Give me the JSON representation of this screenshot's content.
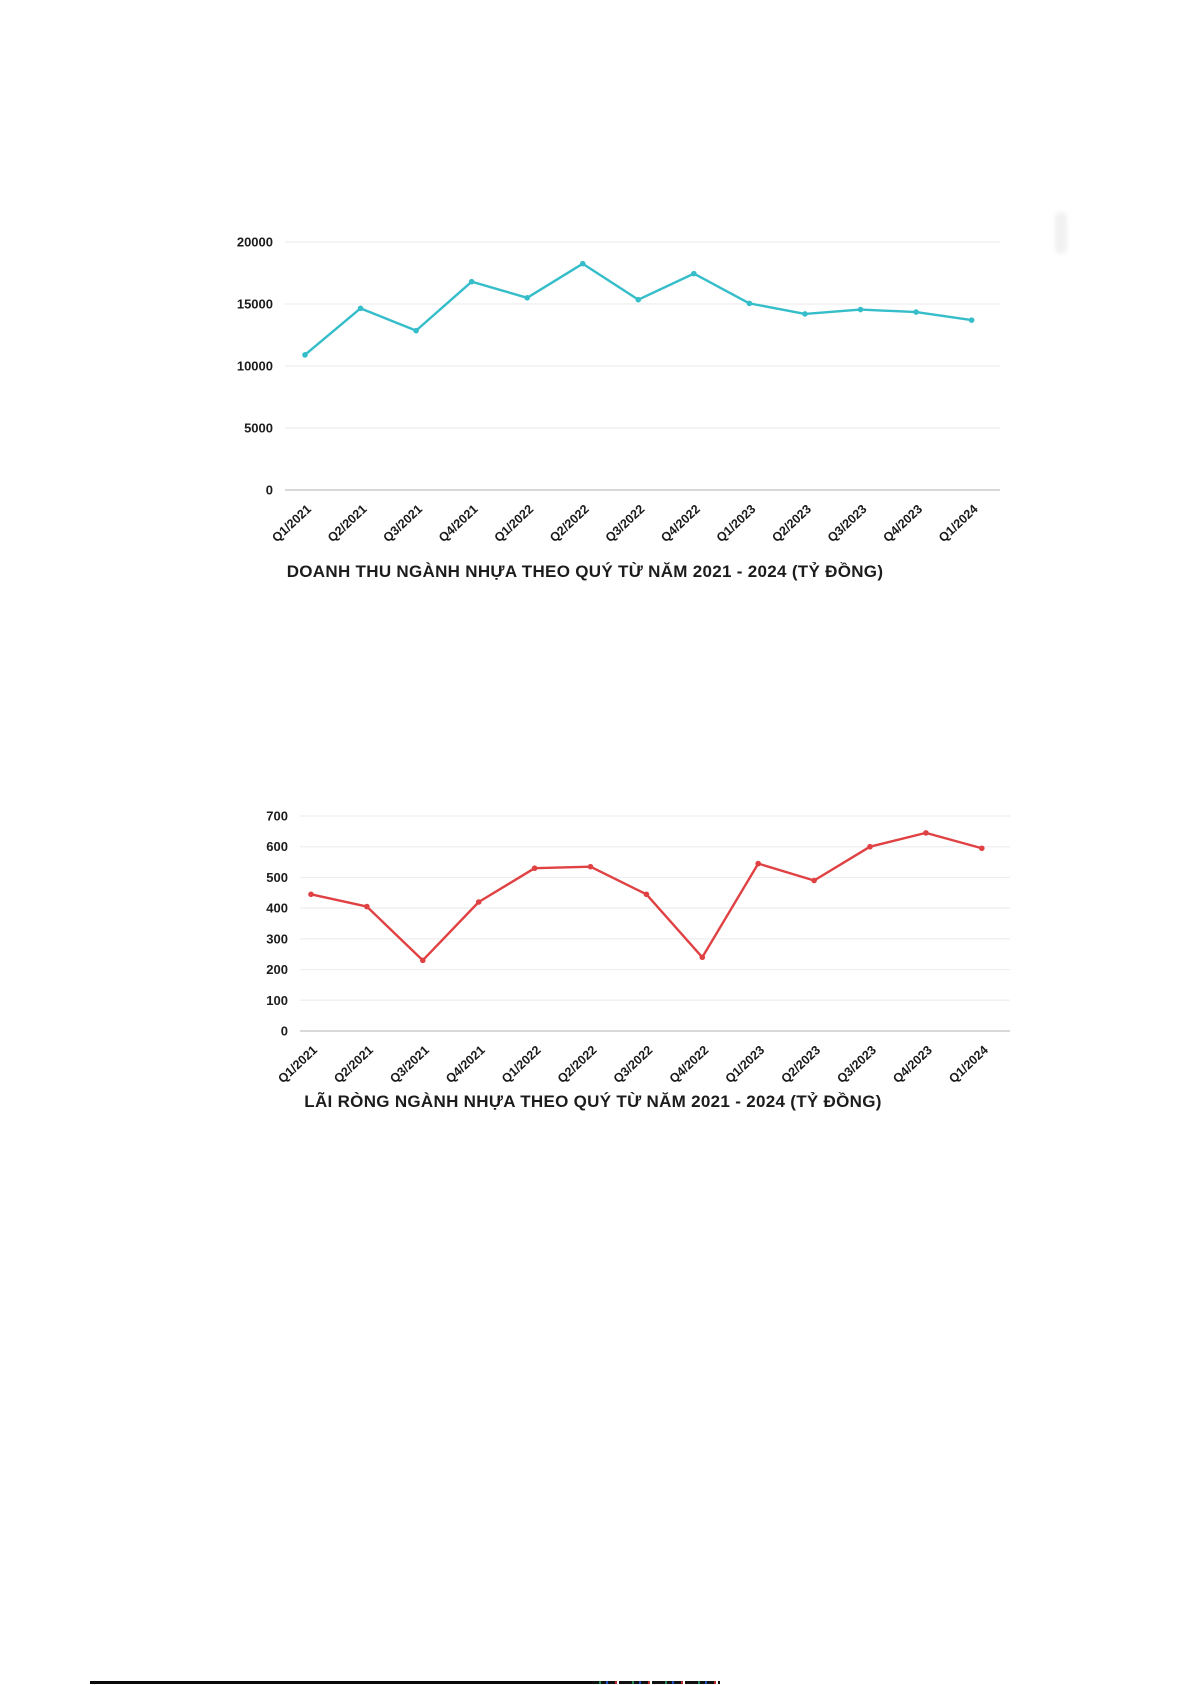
{
  "page": {
    "background": "#ffffff",
    "text_color": "#1c1c1c",
    "gridline_color": "#eeeeee",
    "axis_color": "#d9d9d9"
  },
  "chart_data": [
    {
      "id": "revenue",
      "type": "line",
      "title": "DOANH THU NGÀNH NHỰA THEO QUÝ TỪ NĂM 2021 - 2024 (TỶ ĐỒNG)",
      "xlabel": "",
      "ylabel": "",
      "legend_position": "none",
      "grid": true,
      "line_color": "#35bdc9",
      "marker": "dot",
      "ylim": [
        0,
        20000
      ],
      "yticks": [
        0,
        5000,
        10000,
        15000,
        20000
      ],
      "categories": [
        "Q1/2021",
        "Q2/2021",
        "Q3/2021",
        "Q4/2021",
        "Q1/2022",
        "Q2/2022",
        "Q3/2022",
        "Q4/2022",
        "Q1/2023",
        "Q2/2023",
        "Q3/2023",
        "Q4/2023",
        "Q1/2024"
      ],
      "values": [
        10900,
        14650,
        12850,
        16800,
        15500,
        18250,
        15350,
        17450,
        15050,
        14200,
        14550,
        14350,
        13700
      ]
    },
    {
      "id": "net-profit",
      "type": "line",
      "title": "LÃI RÒNG NGÀNH NHỰA THEO QUÝ TỪ NĂM 2021 - 2024 (TỶ ĐỒNG)",
      "xlabel": "",
      "ylabel": "",
      "legend_position": "none",
      "grid": true,
      "line_color": "#e04143",
      "marker": "dot",
      "ylim": [
        0,
        700
      ],
      "yticks": [
        0,
        100,
        200,
        300,
        400,
        500,
        600,
        700
      ],
      "categories": [
        "Q1/2021",
        "Q2/2021",
        "Q3/2021",
        "Q4/2021",
        "Q1/2022",
        "Q2/2022",
        "Q3/2022",
        "Q4/2022",
        "Q1/2023",
        "Q2/2023",
        "Q3/2023",
        "Q4/2023",
        "Q1/2024"
      ],
      "values": [
        445,
        405,
        230,
        420,
        530,
        535,
        445,
        240,
        545,
        490,
        600,
        645,
        595
      ]
    }
  ]
}
